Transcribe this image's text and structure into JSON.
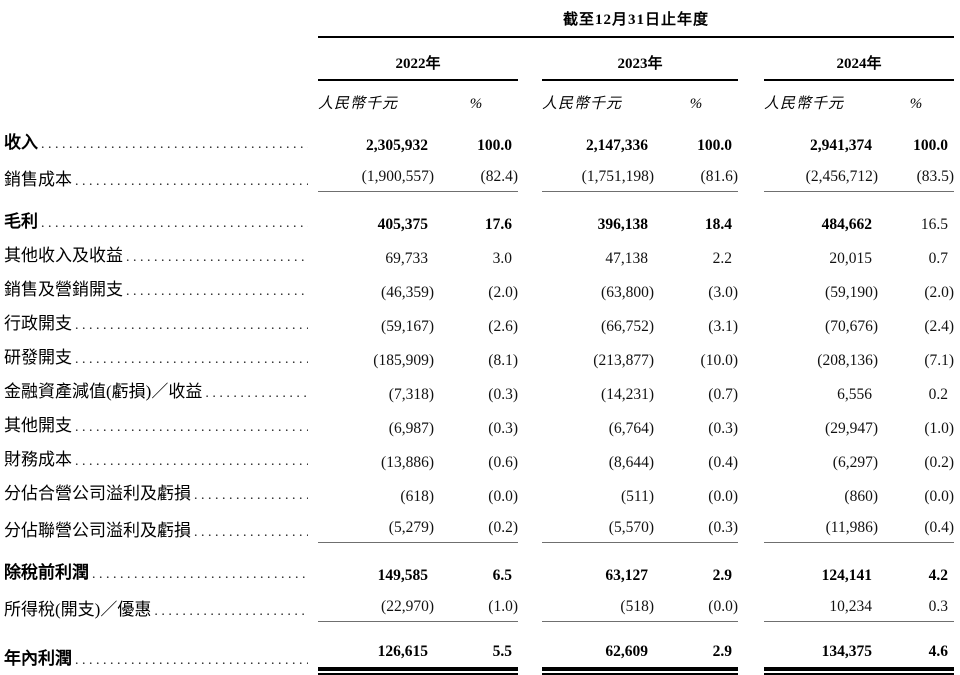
{
  "header": {
    "period_title": "截至12月31日止年度",
    "years": [
      "2022年",
      "2023年",
      "2024年"
    ],
    "unit_label": "人民幣千元",
    "percent_label": "%"
  },
  "colors": {
    "text": "#000000",
    "heavy_rule": "#000000",
    "light_rule": "#6f6f6f",
    "background": "#ffffff"
  },
  "table": {
    "column_headers": [
      "人民幣千元",
      "%",
      "人民幣千元",
      "%",
      "人民幣千元",
      "%"
    ],
    "rows": [
      {
        "label": "收入",
        "bold": true,
        "values_bold": true,
        "values": [
          "2,305,932",
          "100.0",
          "2,147,336",
          "100.0",
          "2,941,374",
          "100.0"
        ]
      },
      {
        "label": "銷售成本",
        "rule_below": "single",
        "values": [
          "(1,900,557)",
          "(82.4)",
          "(1,751,198)",
          "(81.6)",
          "(2,456,712)",
          "(83.5)"
        ]
      },
      {
        "label": "毛利",
        "bold": true,
        "values_bold": true,
        "regular_cells": [
          5
        ],
        "gap_before": true,
        "values": [
          "405,375",
          "17.6",
          "396,138",
          "18.4",
          "484,662",
          "16.5"
        ]
      },
      {
        "label": "其他收入及收益",
        "values": [
          "69,733",
          "3.0",
          "47,138",
          "2.2",
          "20,015",
          "0.7"
        ]
      },
      {
        "label": "銷售及營銷開支",
        "values": [
          "(46,359)",
          "(2.0)",
          "(63,800)",
          "(3.0)",
          "(59,190)",
          "(2.0)"
        ]
      },
      {
        "label": "行政開支",
        "values": [
          "(59,167)",
          "(2.6)",
          "(66,752)",
          "(3.1)",
          "(70,676)",
          "(2.4)"
        ]
      },
      {
        "label": "研發開支",
        "values": [
          "(185,909)",
          "(8.1)",
          "(213,877)",
          "(10.0)",
          "(208,136)",
          "(7.1)"
        ]
      },
      {
        "label": "金融資產減值(虧損)／收益",
        "values": [
          "(7,318)",
          "(0.3)",
          "(14,231)",
          "(0.7)",
          "6,556",
          "0.2"
        ]
      },
      {
        "label": "其他開支",
        "values": [
          "(6,987)",
          "(0.3)",
          "(6,764)",
          "(0.3)",
          "(29,947)",
          "(1.0)"
        ]
      },
      {
        "label": "財務成本",
        "values": [
          "(13,886)",
          "(0.6)",
          "(8,644)",
          "(0.4)",
          "(6,297)",
          "(0.2)"
        ]
      },
      {
        "label": "分佔合營公司溢利及虧損",
        "values": [
          "(618)",
          "(0.0)",
          "(511)",
          "(0.0)",
          "(860)",
          "(0.0)"
        ]
      },
      {
        "label": "分佔聯營公司溢利及虧損",
        "rule_below": "single",
        "values": [
          "(5,279)",
          "(0.2)",
          "(5,570)",
          "(0.3)",
          "(11,986)",
          "(0.4)"
        ]
      },
      {
        "label": "除稅前利潤",
        "bold": true,
        "values_bold": true,
        "gap_before": true,
        "values": [
          "149,585",
          "6.5",
          "63,127",
          "2.9",
          "124,141",
          "4.2"
        ]
      },
      {
        "label": "所得稅(開支)／優惠",
        "rule_below": "single",
        "values": [
          "(22,970)",
          "(1.0)",
          "(518)",
          "(0.0)",
          "10,234",
          "0.3"
        ]
      },
      {
        "label": "年內利潤",
        "bold": true,
        "values_bold": true,
        "gap_before": true,
        "rule_below": "double",
        "values": [
          "126,615",
          "5.5",
          "62,609",
          "2.9",
          "134,375",
          "4.6"
        ]
      }
    ]
  }
}
